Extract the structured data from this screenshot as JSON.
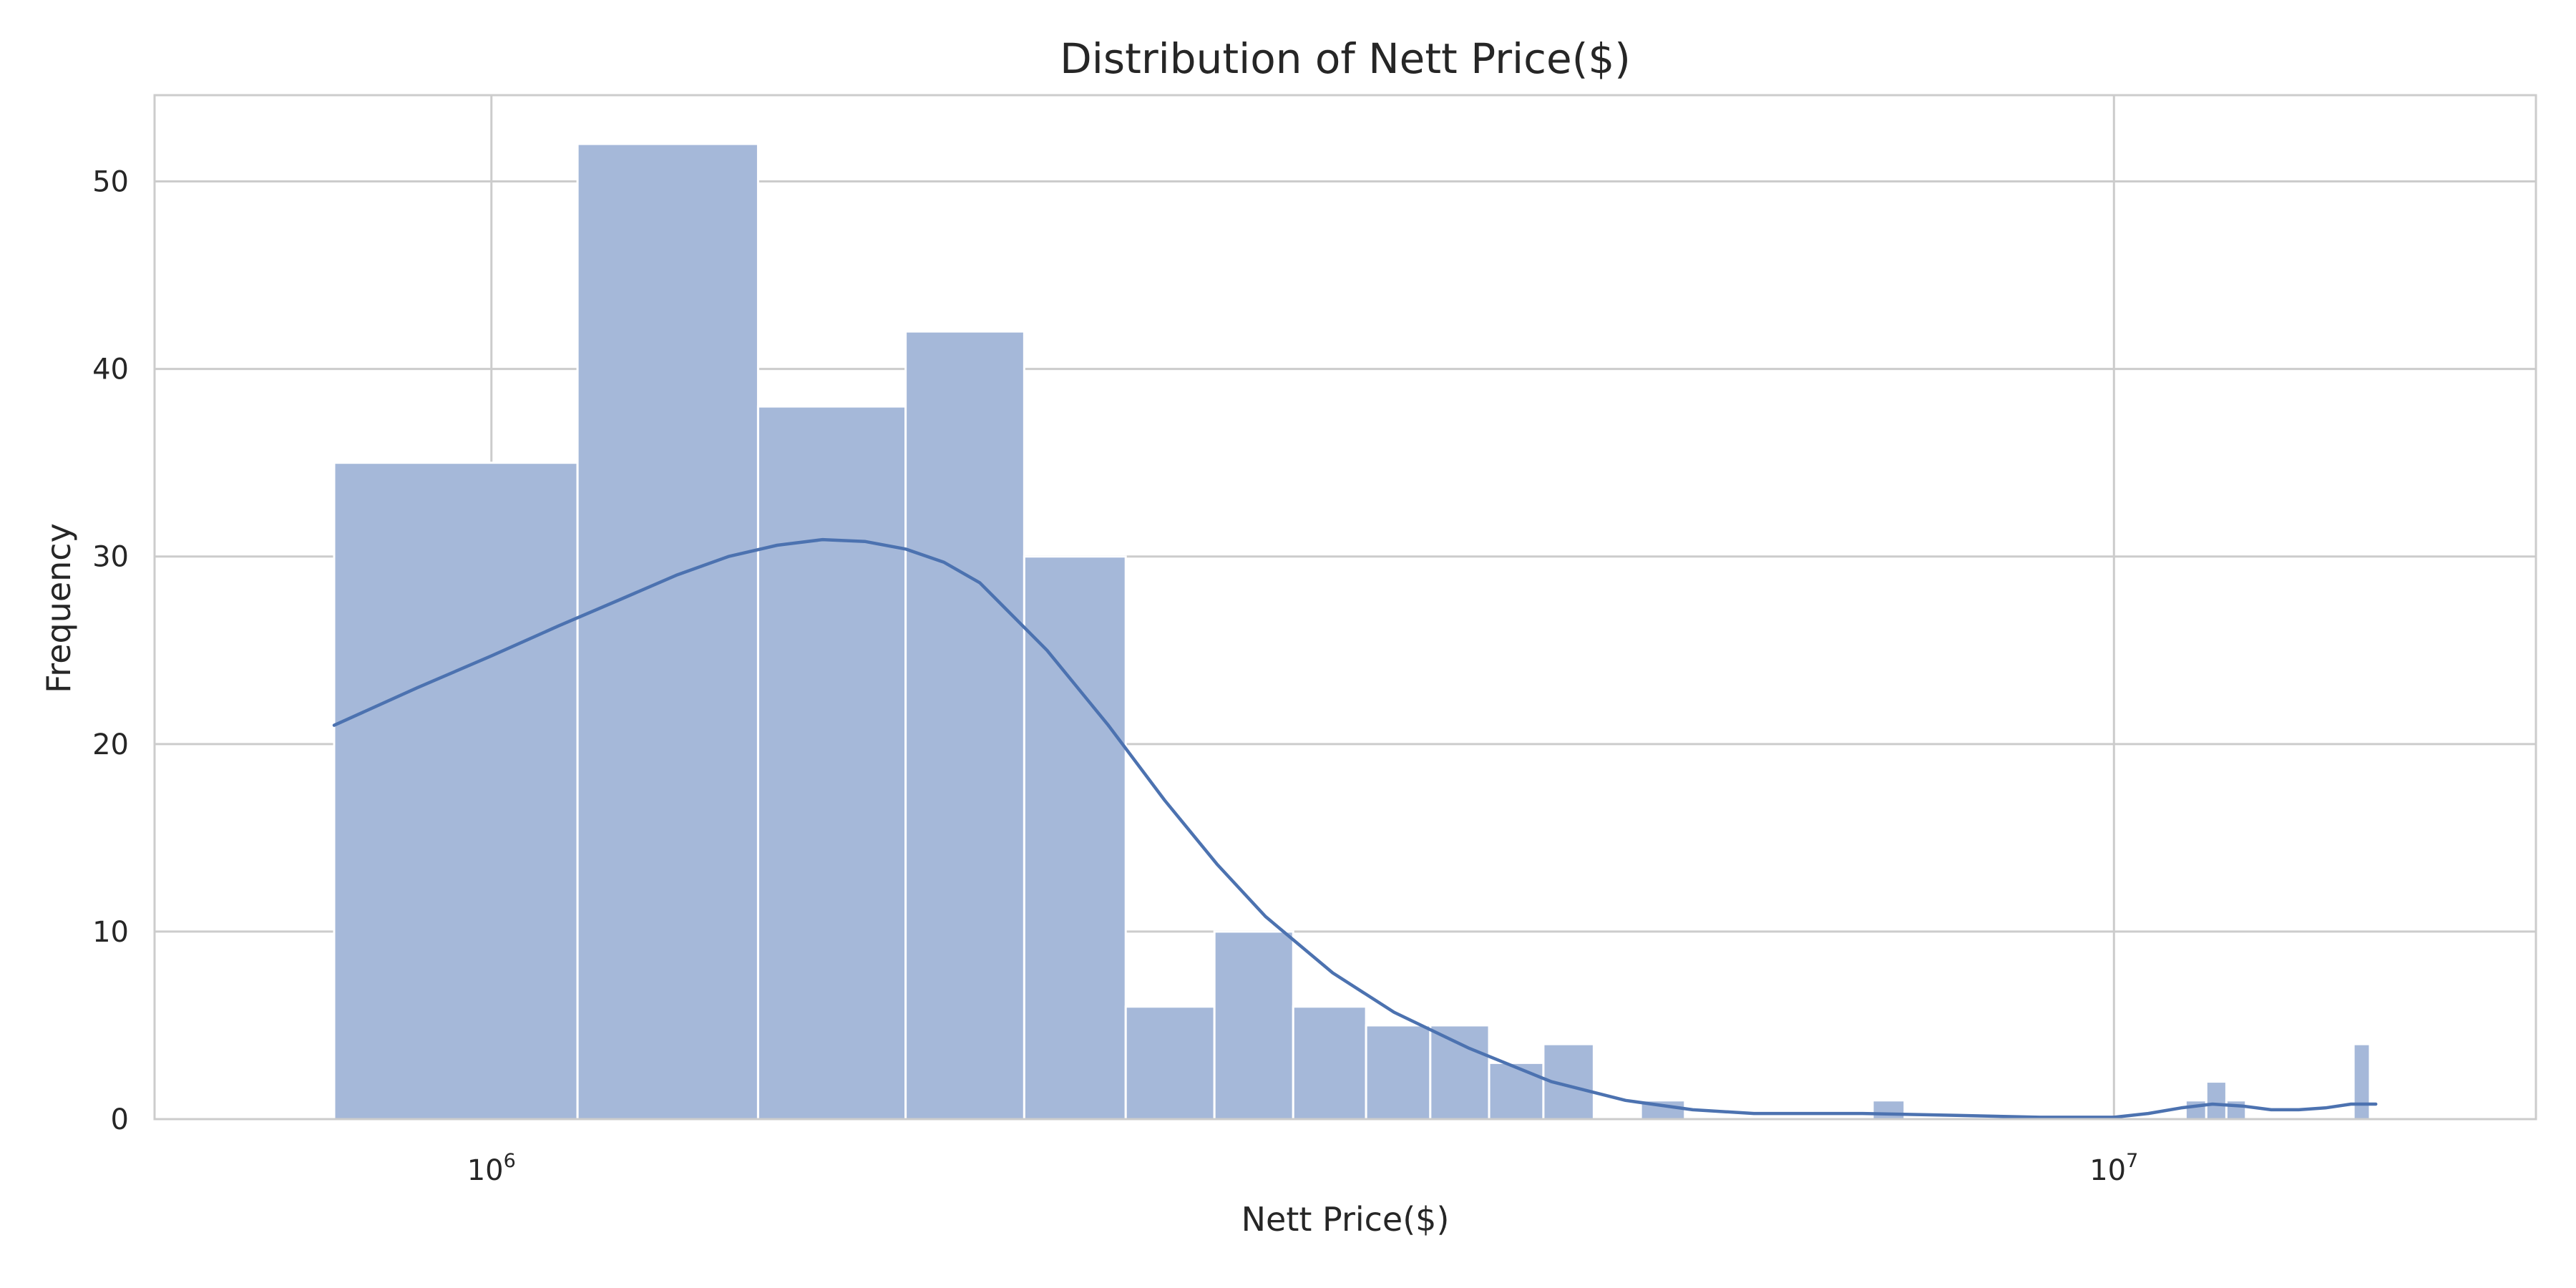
{
  "chart_data": {
    "type": "bar",
    "title": "Distribution of Nett Price($)",
    "xlabel": "Nett Price($)",
    "ylabel": "Frequency",
    "x_scale": "log",
    "xlim": [
      620000,
      18200000
    ],
    "ylim": [
      0,
      54.6
    ],
    "y_ticks": [
      0,
      10,
      20,
      30,
      40,
      50
    ],
    "x_ticks": [
      {
        "value": 1000000,
        "base": "10",
        "exponent": "6"
      },
      {
        "value": 10000000,
        "base": "10",
        "exponent": "7"
      }
    ],
    "grid": true,
    "legend": "none",
    "colors": {
      "bar": "#a5b8d9",
      "kde": "#4c72b0",
      "grid": "#cccccc"
    },
    "bins": [
      {
        "x0": 800000,
        "x1": 1130000,
        "count": 35
      },
      {
        "x0": 1130000,
        "x1": 1460000,
        "count": 52
      },
      {
        "x0": 1460000,
        "x1": 1800000,
        "count": 38
      },
      {
        "x0": 1800000,
        "x1": 2130000,
        "count": 42
      },
      {
        "x0": 2130000,
        "x1": 2460000,
        "count": 30
      },
      {
        "x0": 2460000,
        "x1": 2790000,
        "count": 6
      },
      {
        "x0": 2790000,
        "x1": 3120000,
        "count": 10
      },
      {
        "x0": 3120000,
        "x1": 3460000,
        "count": 6
      },
      {
        "x0": 3460000,
        "x1": 3790000,
        "count": 5
      },
      {
        "x0": 3790000,
        "x1": 4120000,
        "count": 5
      },
      {
        "x0": 4120000,
        "x1": 4450000,
        "count": 3
      },
      {
        "x0": 4450000,
        "x1": 4780000,
        "count": 4
      },
      {
        "x0": 5110000,
        "x1": 5440000,
        "count": 1
      },
      {
        "x0": 7100000,
        "x1": 7430000,
        "count": 1
      },
      {
        "x0": 11070000,
        "x1": 11400000,
        "count": 1
      },
      {
        "x0": 11400000,
        "x1": 11730000,
        "count": 2
      },
      {
        "x0": 11730000,
        "x1": 12060000,
        "count": 1
      },
      {
        "x0": 14050000,
        "x1": 14380000,
        "count": 4
      }
    ],
    "kde": {
      "x": [
        800000,
        900000,
        1000000,
        1100000,
        1200000,
        1300000,
        1400000,
        1500000,
        1600000,
        1700000,
        1800000,
        1900000,
        2000000,
        2200000,
        2400000,
        2600000,
        2800000,
        3000000,
        3300000,
        3600000,
        4000000,
        4500000,
        5000000,
        5500000,
        6000000,
        7000000,
        8000000,
        9000000,
        10000000,
        10500000,
        11000000,
        11500000,
        12000000,
        12500000,
        13000000,
        13500000,
        14000000,
        14500000
      ],
      "y": [
        21.0,
        23.0,
        24.7,
        26.3,
        27.7,
        29.0,
        30.0,
        30.6,
        30.9,
        30.8,
        30.4,
        29.7,
        28.6,
        25.0,
        21.0,
        17.0,
        13.6,
        10.8,
        7.8,
        5.7,
        3.8,
        2.0,
        1.0,
        0.5,
        0.3,
        0.3,
        0.2,
        0.1,
        0.1,
        0.3,
        0.6,
        0.8,
        0.7,
        0.5,
        0.5,
        0.6,
        0.8,
        0.8
      ]
    }
  }
}
